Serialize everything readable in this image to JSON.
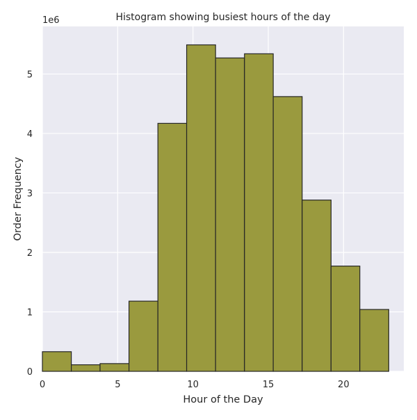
{
  "chart_data": {
    "type": "bar",
    "title": "Histogram showing busiest hours of the day",
    "xlabel": "Hour of the Day",
    "ylabel": "Order Frequency",
    "y_offset_label": "1e6",
    "xlim": [
      0,
      24
    ],
    "ylim": [
      0,
      5.8
    ],
    "x_ticks": [
      0,
      5,
      10,
      15,
      20
    ],
    "y_ticks": [
      0,
      1,
      2,
      3,
      4,
      5
    ],
    "grid": true,
    "bar_color": "#9a9a3e",
    "bar_edge_color": "#262626",
    "plot_background": "#eaeaf2",
    "grid_color": "#ffffff",
    "bins": [
      {
        "x0": 0.0,
        "x1": 1.92,
        "value": 0.33
      },
      {
        "x0": 1.92,
        "x1": 3.83,
        "value": 0.11
      },
      {
        "x0": 3.83,
        "x1": 5.75,
        "value": 0.13
      },
      {
        "x0": 5.75,
        "x1": 7.67,
        "value": 1.18
      },
      {
        "x0": 7.67,
        "x1": 9.58,
        "value": 4.17
      },
      {
        "x0": 9.58,
        "x1": 11.5,
        "value": 5.49
      },
      {
        "x0": 11.5,
        "x1": 13.42,
        "value": 5.27
      },
      {
        "x0": 13.42,
        "x1": 15.33,
        "value": 5.34
      },
      {
        "x0": 15.33,
        "x1": 17.25,
        "value": 4.62
      },
      {
        "x0": 17.25,
        "x1": 19.17,
        "value": 2.88
      },
      {
        "x0": 19.17,
        "x1": 21.08,
        "value": 1.77
      },
      {
        "x0": 21.08,
        "x1": 23.0,
        "value": 1.04
      }
    ]
  }
}
